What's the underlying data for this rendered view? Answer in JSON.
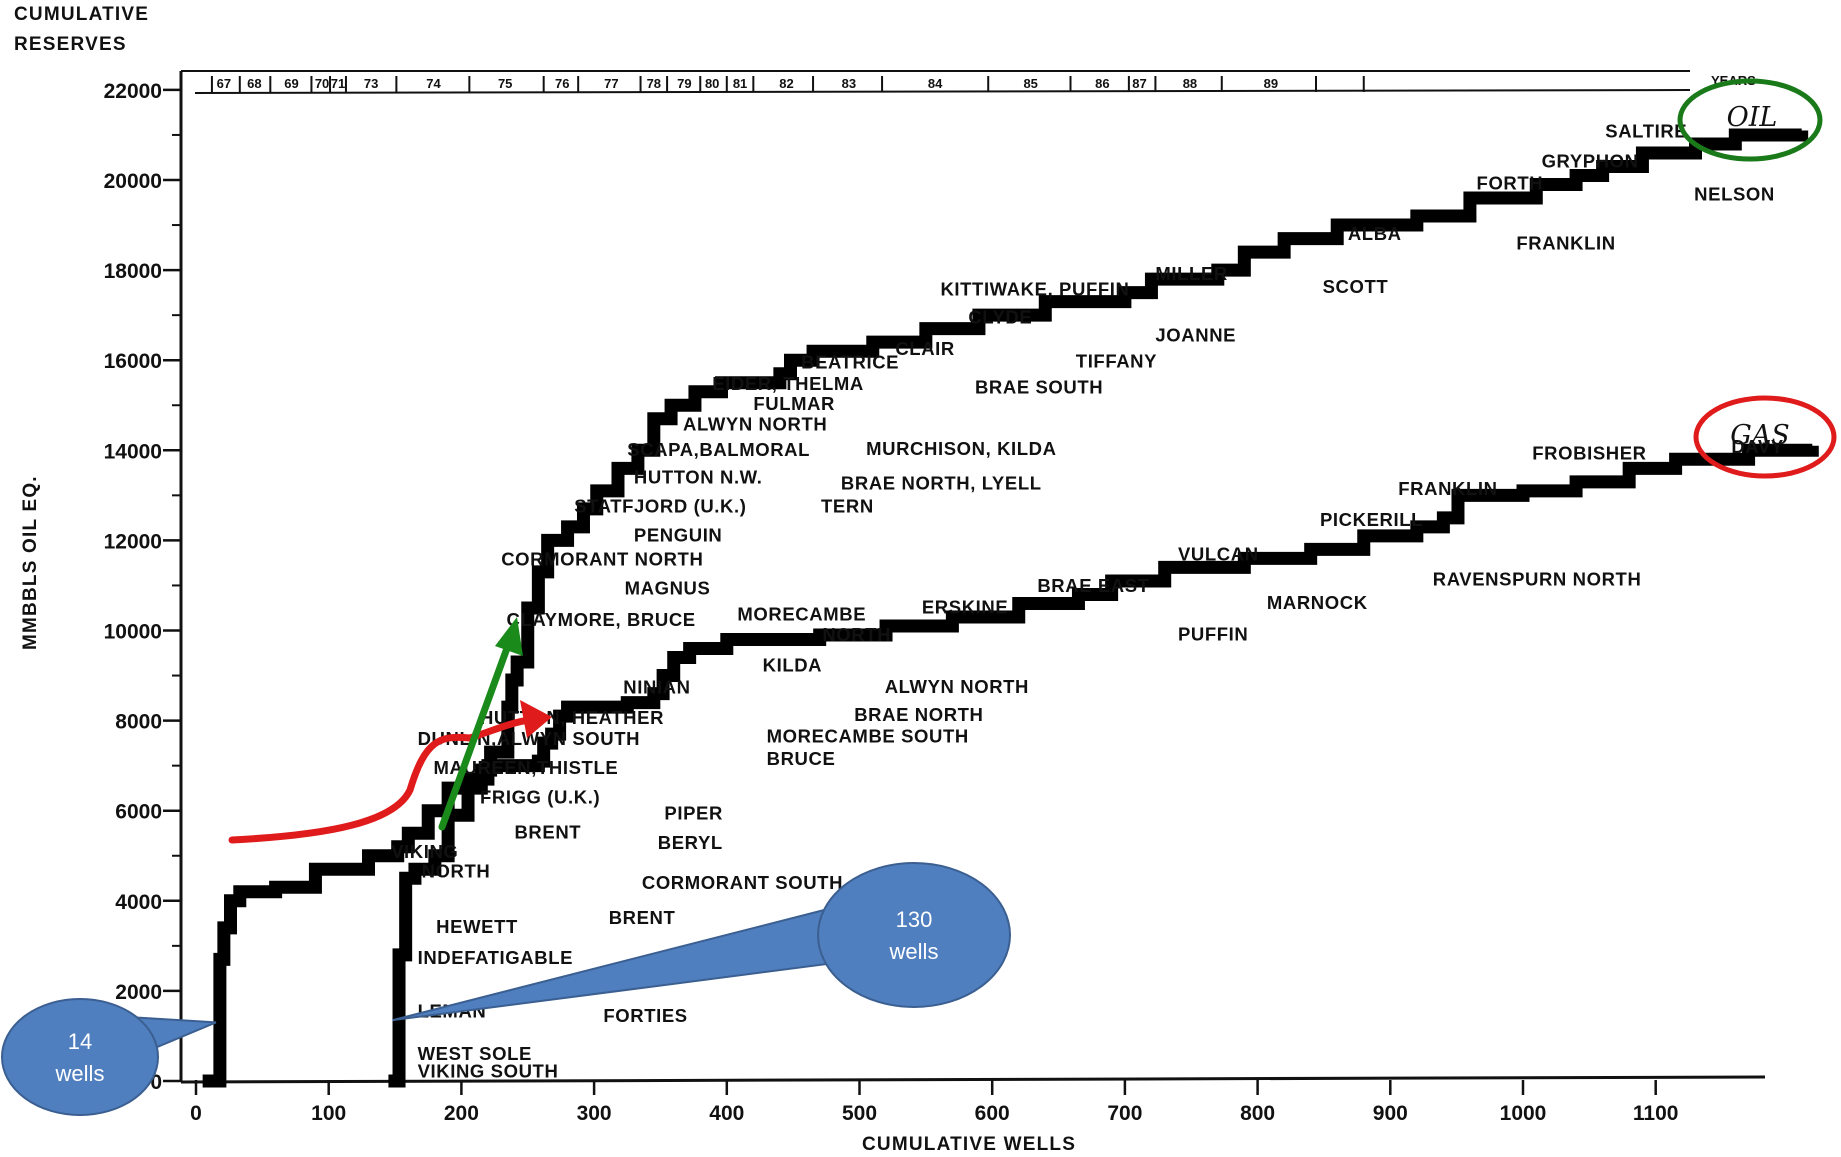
{
  "chart_data": {
    "type": "line",
    "ylabel_top": [
      "CUMULATIVE",
      "RESERVES"
    ],
    "ylabel": "MMBBLS OIL EQ.",
    "xlabel": "CUMULATIVE WELLS",
    "years_label": "YEARS",
    "xlim": [
      0,
      1180
    ],
    "ylim": [
      0,
      22000
    ],
    "x_ticks": [
      0,
      100,
      200,
      300,
      400,
      500,
      600,
      700,
      800,
      900,
      1000,
      1100
    ],
    "y_ticks": [
      0,
      2000,
      4000,
      6000,
      8000,
      10000,
      12000,
      14000,
      16000,
      18000,
      20000,
      22000
    ],
    "y_tick_labels": [
      "0",
      "2000",
      "4000",
      "6000",
      "8000",
      "10000",
      "12000",
      "14000",
      "16000",
      "18000",
      "20000",
      "22000"
    ],
    "year_labels": [
      {
        "label": "67",
        "x": 21
      },
      {
        "label": "68",
        "x": 44
      },
      {
        "label": "69",
        "x": 72
      },
      {
        "label": "70",
        "x": 95
      },
      {
        "label": "71",
        "x": 107
      },
      {
        "label": "73",
        "x": 132
      },
      {
        "label": "74",
        "x": 179
      },
      {
        "label": "75",
        "x": 233
      },
      {
        "label": "76",
        "x": 276
      },
      {
        "label": "77",
        "x": 313
      },
      {
        "label": "78",
        "x": 345
      },
      {
        "label": "79",
        "x": 368
      },
      {
        "label": "80",
        "x": 389
      },
      {
        "label": "81",
        "x": 410
      },
      {
        "label": "82",
        "x": 445
      },
      {
        "label": "83",
        "x": 492
      },
      {
        "label": "84",
        "x": 557
      },
      {
        "label": "85",
        "x": 629
      },
      {
        "label": "86",
        "x": 683
      },
      {
        "label": "87",
        "x": 711
      },
      {
        "label": "88",
        "x": 749
      },
      {
        "label": "89",
        "x": 810
      }
    ],
    "year_ticks": [
      12,
      33,
      56,
      87,
      101,
      113,
      151,
      206,
      262,
      288,
      335,
      355,
      380,
      400,
      420,
      465,
      517,
      597,
      659,
      703,
      723,
      773,
      844,
      880
    ],
    "series": [
      {
        "name": "OIL",
        "points": [
          [
            145,
            0
          ],
          [
            151,
            0
          ],
          [
            153,
            2800
          ],
          [
            158,
            4500
          ],
          [
            165,
            4700
          ],
          [
            180,
            5000
          ],
          [
            190,
            5900
          ],
          [
            205,
            6500
          ],
          [
            215,
            6900
          ],
          [
            222,
            7300
          ],
          [
            235,
            8300
          ],
          [
            238,
            8900
          ],
          [
            242,
            9300
          ],
          [
            250,
            10500
          ],
          [
            258,
            11300
          ],
          [
            265,
            12000
          ],
          [
            280,
            12300
          ],
          [
            292,
            12700
          ],
          [
            302,
            13100
          ],
          [
            318,
            13600
          ],
          [
            333,
            14000
          ],
          [
            345,
            14700
          ],
          [
            358,
            15000
          ],
          [
            376,
            15300
          ],
          [
            396,
            15500
          ],
          [
            440,
            15700
          ],
          [
            448,
            16000
          ],
          [
            465,
            16200
          ],
          [
            510,
            16400
          ],
          [
            550,
            16700
          ],
          [
            590,
            17000
          ],
          [
            640,
            17300
          ],
          [
            700,
            17500
          ],
          [
            720,
            17800
          ],
          [
            770,
            18000
          ],
          [
            790,
            18400
          ],
          [
            820,
            18700
          ],
          [
            860,
            19000
          ],
          [
            920,
            19200
          ],
          [
            960,
            19600
          ],
          [
            1010,
            19900
          ],
          [
            1040,
            20100
          ],
          [
            1060,
            20300
          ],
          [
            1090,
            20600
          ],
          [
            1130,
            20800
          ],
          [
            1160,
            21000
          ],
          [
            1210,
            21100
          ]
        ]
      },
      {
        "name": "GAS",
        "points": [
          [
            5,
            0
          ],
          [
            15,
            0
          ],
          [
            18,
            2700
          ],
          [
            21,
            3400
          ],
          [
            26,
            4000
          ],
          [
            33,
            4200
          ],
          [
            60,
            4300
          ],
          [
            90,
            4700
          ],
          [
            130,
            5000
          ],
          [
            152,
            5200
          ],
          [
            160,
            5500
          ],
          [
            175,
            6000
          ],
          [
            190,
            6500
          ],
          [
            204,
            6700
          ],
          [
            220,
            7000
          ],
          [
            258,
            7100
          ],
          [
            262,
            7500
          ],
          [
            268,
            7700
          ],
          [
            274,
            8100
          ],
          [
            280,
            8300
          ],
          [
            325,
            8400
          ],
          [
            345,
            8600
          ],
          [
            352,
            9000
          ],
          [
            360,
            9400
          ],
          [
            372,
            9600
          ],
          [
            400,
            9800
          ],
          [
            470,
            9900
          ],
          [
            520,
            10100
          ],
          [
            570,
            10300
          ],
          [
            620,
            10600
          ],
          [
            665,
            10800
          ],
          [
            690,
            11100
          ],
          [
            730,
            11400
          ],
          [
            790,
            11600
          ],
          [
            840,
            11800
          ],
          [
            880,
            12100
          ],
          [
            920,
            12300
          ],
          [
            940,
            12500
          ],
          [
            951,
            13000
          ],
          [
            1000,
            13100
          ],
          [
            1040,
            13300
          ],
          [
            1080,
            13600
          ],
          [
            1115,
            13800
          ],
          [
            1170,
            14000
          ],
          [
            1218,
            14100
          ]
        ]
      }
    ],
    "annotations": [
      {
        "text": "SALTIRE",
        "x": 1062,
        "y": 21100,
        "series": "OIL"
      },
      {
        "text": "GRYPHON",
        "x": 1014,
        "y": 20430,
        "series": "OIL"
      },
      {
        "text": "FORTH",
        "x": 965,
        "y": 19940,
        "series": "OIL"
      },
      {
        "text": "NELSON",
        "x": 1129,
        "y": 19700,
        "series": "OIL"
      },
      {
        "text": "ALBA",
        "x": 868,
        "y": 18820,
        "series": "OIL"
      },
      {
        "text": "FRANKLIN",
        "x": 995,
        "y": 18610,
        "series": "OIL"
      },
      {
        "text": "MILLER",
        "x": 723,
        "y": 17940,
        "series": "OIL"
      },
      {
        "text": "SCOTT",
        "x": 849,
        "y": 17650,
        "series": "OIL"
      },
      {
        "text": "KITTIWAKE, PUFFIN",
        "x": 561,
        "y": 17590,
        "series": "OIL"
      },
      {
        "text": "CLYDE",
        "x": 582,
        "y": 16970,
        "series": "OIL"
      },
      {
        "text": "JOANNE",
        "x": 723,
        "y": 16570,
        "series": "OIL"
      },
      {
        "text": "CLAIR",
        "x": 527,
        "y": 16270,
        "series": "OIL"
      },
      {
        "text": "TIFFANY",
        "x": 663,
        "y": 15990,
        "series": "OIL"
      },
      {
        "text": "BEATRICE",
        "x": 456,
        "y": 15970,
        "series": "OIL"
      },
      {
        "text": "EIDER, THELMA",
        "x": 389,
        "y": 15490,
        "series": "OIL"
      },
      {
        "text": "BRAE SOUTH",
        "x": 587,
        "y": 15420,
        "series": "OIL"
      },
      {
        "text": "FULMAR",
        "x": 420,
        "y": 15050,
        "series": "OIL"
      },
      {
        "text": "ALWYN NORTH",
        "x": 367,
        "y": 14590,
        "series": "OIL"
      },
      {
        "text": "SCAPA,BALMORAL",
        "x": 325,
        "y": 14030,
        "series": "OIL"
      },
      {
        "text": "MURCHISON, KILDA",
        "x": 505,
        "y": 14050,
        "series": "OIL"
      },
      {
        "text": "HUTTON N.W.",
        "x": 330,
        "y": 13420,
        "series": "OIL"
      },
      {
        "text": "BRAE NORTH, LYELL",
        "x": 486,
        "y": 13280,
        "series": "OIL"
      },
      {
        "text": "STATFJORD (U.K.)",
        "x": 285,
        "y": 12780,
        "series": "OIL"
      },
      {
        "text": "TERN",
        "x": 471,
        "y": 12780,
        "series": "OIL"
      },
      {
        "text": "PENGUIN",
        "x": 330,
        "y": 12130,
        "series": "OIL"
      },
      {
        "text": "CORMORANT NORTH",
        "x": 230,
        "y": 11600,
        "series": "OIL"
      },
      {
        "text": "MAGNUS",
        "x": 323,
        "y": 10950,
        "series": "OIL"
      },
      {
        "text": "CLAYMORE, BRUCE",
        "x": 234,
        "y": 10250,
        "series": "OIL"
      },
      {
        "text": "MORECAMBE",
        "x": 408,
        "y": 10380,
        "series": "GAS"
      },
      {
        "text": "NORTH",
        "x": 472,
        "y": 9920,
        "series": "GAS"
      },
      {
        "text": "ERSKINE",
        "x": 547,
        "y": 10530,
        "series": "GAS"
      },
      {
        "text": "BRAE EAST",
        "x": 634,
        "y": 11010,
        "series": "GAS"
      },
      {
        "text": "VULCAN",
        "x": 740,
        "y": 11710,
        "series": "GAS"
      },
      {
        "text": "MARNOCK",
        "x": 807,
        "y": 10630,
        "series": "GAS"
      },
      {
        "text": "PUFFIN",
        "x": 740,
        "y": 9930,
        "series": "GAS"
      },
      {
        "text": "PICKERILL",
        "x": 847,
        "y": 12470,
        "series": "GAS"
      },
      {
        "text": "RAVENSPURN NORTH",
        "x": 932,
        "y": 11150,
        "series": "GAS"
      },
      {
        "text": "FRANKLIN",
        "x": 906,
        "y": 13160,
        "series": "GAS"
      },
      {
        "text": "FROBISHER",
        "x": 1007,
        "y": 13950,
        "series": "GAS"
      },
      {
        "text": "DAVY",
        "x": 1157,
        "y": 14100,
        "series": "GAS"
      },
      {
        "text": "KILDA",
        "x": 427,
        "y": 9250,
        "series": "GAS"
      },
      {
        "text": "ALWYN NORTH",
        "x": 519,
        "y": 8770,
        "series": "GAS"
      },
      {
        "text": "BRAE NORTH",
        "x": 496,
        "y": 8150,
        "series": "GAS"
      },
      {
        "text": "MORECAMBE SOUTH",
        "x": 430,
        "y": 7670,
        "series": "GAS"
      },
      {
        "text": "BRUCE",
        "x": 430,
        "y": 7170,
        "series": "GAS"
      },
      {
        "text": "NINIAN",
        "x": 322,
        "y": 8760,
        "series": "OIL"
      },
      {
        "text": "HUTTON, HEATHER",
        "x": 214,
        "y": 8080,
        "series": "OIL"
      },
      {
        "text": "DUNLIN,ALWYN SOUTH",
        "x": 167,
        "y": 7610,
        "series": "OIL"
      },
      {
        "text": "MAUREEN,THISTLE",
        "x": 179,
        "y": 6970,
        "series": "OIL"
      },
      {
        "text": "FRIGG (U.K.)",
        "x": 214,
        "y": 6320,
        "series": "GAS"
      },
      {
        "text": "BRENT",
        "x": 240,
        "y": 5540,
        "series": "GAS"
      },
      {
        "text": "PIPER",
        "x": 353,
        "y": 5960,
        "series": "OIL"
      },
      {
        "text": "BERYL",
        "x": 348,
        "y": 5300,
        "series": "OIL"
      },
      {
        "text": "VIKING",
        "x": 147,
        "y": 5100,
        "series": "GAS"
      },
      {
        "text": "NORTH",
        "x": 170,
        "y": 4670,
        "series": "GAS"
      },
      {
        "text": "CORMORANT SOUTH",
        "x": 336,
        "y": 4420,
        "series": "OIL"
      },
      {
        "text": "HEWETT",
        "x": 181,
        "y": 3440,
        "series": "GAS"
      },
      {
        "text": "BRENT",
        "x": 311,
        "y": 3640,
        "series": "OIL"
      },
      {
        "text": "INDEFATIGABLE",
        "x": 167,
        "y": 2750,
        "series": "GAS"
      },
      {
        "text": "LEMAN",
        "x": 167,
        "y": 1560,
        "series": "GAS"
      },
      {
        "text": "FORTIES",
        "x": 307,
        "y": 1470,
        "series": "OIL"
      },
      {
        "text": "WEST SOLE",
        "x": 167,
        "y": 620,
        "series": "GAS"
      },
      {
        "text": "VIKING SOUTH",
        "x": 167,
        "y": 230,
        "series": "GAS"
      }
    ]
  },
  "badges": {
    "oil": {
      "text": "OIL",
      "color": "#1a7a1a"
    },
    "gas": {
      "text": "GAS",
      "color": "#e01b1b"
    }
  },
  "callouts": [
    {
      "line1": "14",
      "line2": "wells",
      "color": "#4f7fbf",
      "pointer_x": 15,
      "pointer_y": 1300
    },
    {
      "line1": "130",
      "line2": "wells",
      "color": "#4f7fbf",
      "pointer_x": 148,
      "pointer_y": 1350
    }
  ],
  "overlay_arrows": [
    {
      "name": "gas-trend-arrow",
      "color": "#e01b1b"
    },
    {
      "name": "oil-trend-arrow",
      "color": "#1a8a1a"
    }
  ]
}
